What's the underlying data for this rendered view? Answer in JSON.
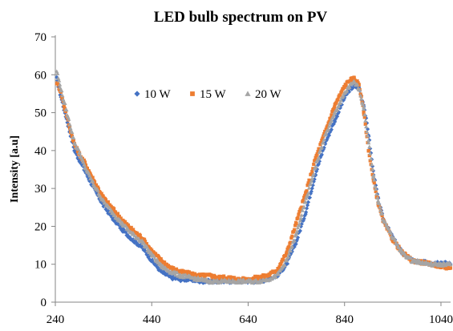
{
  "chart_data": {
    "type": "scatter",
    "title": "LED bulb spectrum on PV",
    "xlabel": "",
    "ylabel": "Intensity  [a.u]",
    "xlim": [
      240,
      1060
    ],
    "ylim": [
      0,
      70
    ],
    "xticks": [
      240,
      440,
      640,
      840,
      1040
    ],
    "yticks": [
      0,
      10,
      20,
      30,
      40,
      50,
      60,
      70
    ],
    "grid": false,
    "legend_position": "top-left inside",
    "series": [
      {
        "name": "10 W",
        "color": "#4472c4",
        "marker": "diamond",
        "x": [
          243,
          250,
          260,
          270,
          280,
          290,
          300,
          320,
          340,
          360,
          380,
          400,
          420,
          440,
          460,
          480,
          500,
          520,
          540,
          560,
          580,
          600,
          620,
          640,
          660,
          680,
          700,
          720,
          740,
          760,
          780,
          800,
          820,
          840,
          850,
          860,
          870,
          880,
          890,
          900,
          910,
          920,
          940,
          960,
          980,
          1000,
          1020,
          1040,
          1060
        ],
        "y": [
          59,
          55,
          50,
          45,
          40,
          37.5,
          35,
          30,
          25.5,
          22,
          19,
          16.5,
          14.5,
          11,
          8,
          6.5,
          6,
          6,
          5.5,
          5.5,
          5.5,
          5.5,
          5.5,
          5.5,
          5.5,
          6,
          7,
          10,
          16,
          24,
          34,
          42,
          48,
          54,
          56,
          57,
          56.5,
          52,
          44,
          34,
          27,
          22,
          17,
          13,
          11,
          10.5,
          10.5,
          10.5,
          10
        ]
      },
      {
        "name": "15 W",
        "color": "#ed7d31",
        "marker": "square",
        "x": [
          243,
          250,
          260,
          270,
          280,
          290,
          300,
          320,
          340,
          360,
          380,
          400,
          420,
          440,
          460,
          480,
          500,
          520,
          540,
          560,
          580,
          600,
          620,
          640,
          660,
          680,
          700,
          720,
          740,
          760,
          780,
          800,
          820,
          840,
          850,
          860,
          870,
          880,
          890,
          900,
          910,
          920,
          940,
          960,
          980,
          1000,
          1020,
          1040,
          1060
        ],
        "y": [
          58,
          56,
          51,
          46,
          41.5,
          39,
          37,
          32,
          27.5,
          24.5,
          21.5,
          19,
          17,
          13.5,
          11,
          9,
          8,
          7.5,
          7,
          7,
          6.5,
          6.5,
          6,
          6,
          6.5,
          7,
          8.5,
          13,
          21,
          29,
          38,
          45,
          52,
          57,
          58.5,
          59,
          57.5,
          50,
          40,
          32,
          26,
          21.5,
          16.5,
          13,
          11,
          10.5,
          10,
          9.5,
          9
        ]
      },
      {
        "name": "20 W",
        "color": "#a5a5a5",
        "marker": "triangle",
        "x": [
          243,
          250,
          260,
          270,
          280,
          290,
          300,
          320,
          340,
          360,
          380,
          400,
          420,
          440,
          460,
          480,
          500,
          520,
          540,
          560,
          580,
          600,
          620,
          640,
          660,
          680,
          700,
          720,
          740,
          760,
          780,
          800,
          820,
          840,
          850,
          860,
          870,
          880,
          890,
          900,
          910,
          920,
          940,
          960,
          980,
          1000,
          1020,
          1040,
          1060
        ],
        "y": [
          61,
          57,
          52,
          47,
          42,
          39.5,
          36,
          31,
          26.5,
          23.5,
          20.5,
          18,
          16,
          12.5,
          9.5,
          8,
          7,
          6.5,
          6,
          5.5,
          5.5,
          5.5,
          5.5,
          5.5,
          5.5,
          6,
          7,
          11,
          18,
          27,
          36,
          44,
          50,
          55,
          57,
          58,
          56.5,
          51,
          42,
          33,
          26.5,
          22,
          17,
          13,
          11,
          10.5,
          10,
          10,
          10
        ]
      }
    ]
  }
}
